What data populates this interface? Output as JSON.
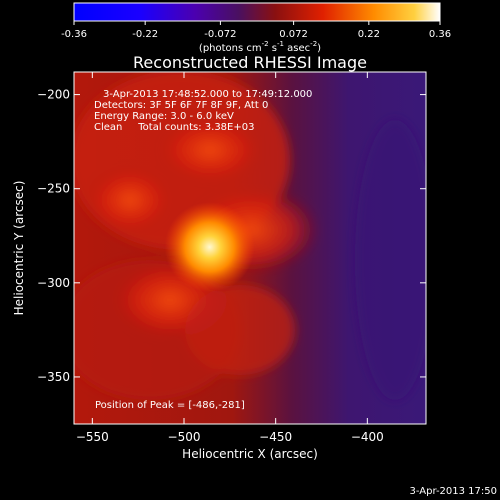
{
  "colorbar": {
    "ticks": [
      "-0.36",
      "-0.22",
      "-0.072",
      "0.072",
      "0.22",
      "0.36"
    ],
    "tick_values": [
      -0.36,
      -0.22,
      -0.072,
      0.072,
      0.22,
      0.36
    ],
    "range": [
      -0.36,
      0.36
    ],
    "unit_main": "(photons cm",
    "unit_sup1": "-2",
    "unit_mid": " s",
    "unit_sup2": "-1",
    "unit_end": " asec",
    "unit_sup3": "-2",
    "unit_close": ")"
  },
  "chart_data": {
    "type": "heatmap",
    "title": "Reconstructed RHESSI Image",
    "xlabel": "Heliocentric X (arcsec)",
    "ylabel": "Heliocentric Y (arcsec)",
    "xlim": [
      -560,
      -368
    ],
    "ylim": [
      -375,
      -188
    ],
    "x_ticks": [
      -550,
      -500,
      -450,
      -400
    ],
    "y_ticks": [
      -200,
      -250,
      -300,
      -350
    ],
    "x_tick_labels": [
      "−550",
      "−500",
      "−450",
      "−400"
    ],
    "y_tick_labels": [
      "−200",
      "−250",
      "−300",
      "−350"
    ],
    "peak": [
      -486,
      -281
    ],
    "annotations": [
      "3-Apr-2013 17:48:52.000 to 17:49:12.000",
      "Detectors: 3F 5F 6F 7F 8F 9F, Att 0",
      "Energy Range: 3.0 - 6.0 keV",
      "Clean     Total counts: 3.38E+03"
    ],
    "peak_label": "Position of Peak = [-486,-281]"
  },
  "footer": {
    "timestamp": "3-Apr-2013 17:50"
  }
}
